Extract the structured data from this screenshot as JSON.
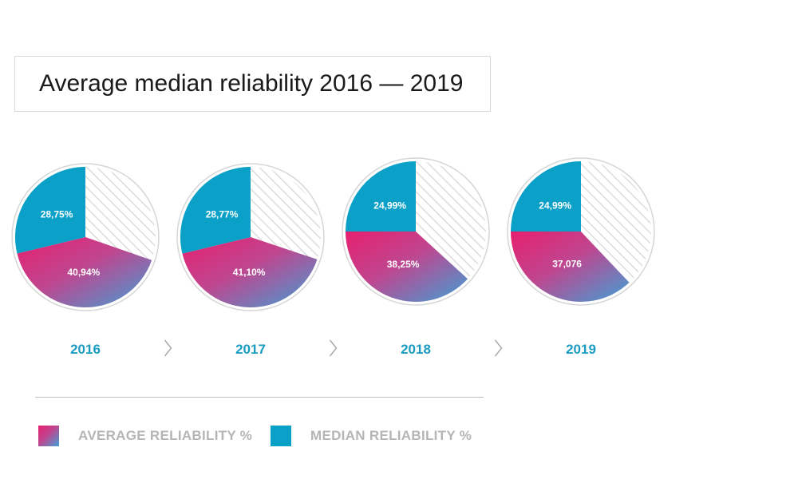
{
  "title": "Average median reliability 2016 — 2019",
  "colors": {
    "median": "#0aa0c7",
    "average_start": "#e6206f",
    "average_end": "#3ea1d6",
    "remainder_stripe": "#d9d9d9",
    "year_label": "#1a9cc2",
    "legend_text": "#b5b5b5"
  },
  "legend": {
    "average": "AVERAGE RELIABILITY %",
    "median": "MEDIAN RELIABILITY %"
  },
  "chart_data": {
    "type": "pie",
    "title": "Average median reliability 2016 — 2019",
    "legend_position": "bottom",
    "charts": [
      {
        "year": "2016",
        "median": 28.75,
        "average": 40.94,
        "median_label": "28,75%",
        "average_label": "40,94%"
      },
      {
        "year": "2017",
        "median": 28.77,
        "average": 41.1,
        "median_label": "28,77%",
        "average_label": "41,10%"
      },
      {
        "year": "2018",
        "median": 24.99,
        "average": 38.25,
        "median_label": "24,99%",
        "average_label": "38,25%"
      },
      {
        "year": "2019",
        "median": 24.99,
        "average": 37.076,
        "median_label": "24,99%",
        "average_label": "37,076"
      }
    ]
  }
}
